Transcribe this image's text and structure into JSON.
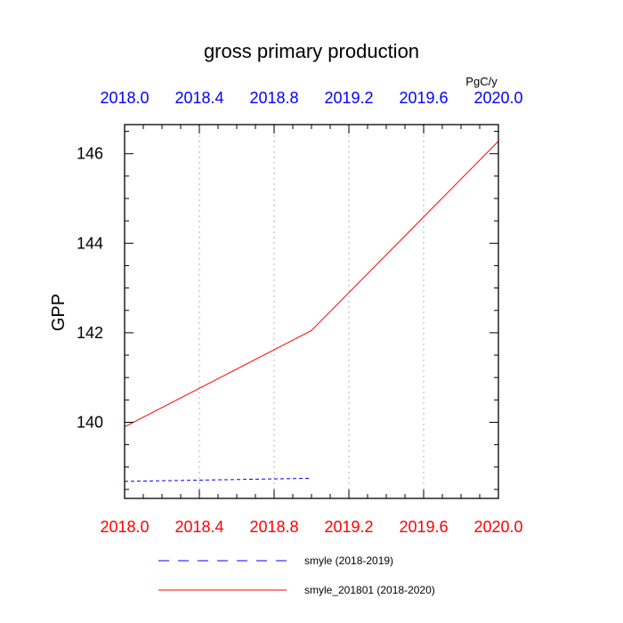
{
  "chart_data": {
    "type": "line",
    "title": "gross primary production",
    "units": "PgC/y",
    "ylabel": "GPP",
    "xlabel": "",
    "xlim": [
      2018.0,
      2020.0
    ],
    "ylim": [
      138.3,
      146.65
    ],
    "x_ticks": [
      2018.0,
      2018.4,
      2018.8,
      2019.2,
      2019.6,
      2020.0
    ],
    "x_tick_labels": [
      "2018.0",
      "2018.4",
      "2018.8",
      "2019.2",
      "2019.6",
      "2020.0"
    ],
    "y_ticks": [
      140,
      142,
      144,
      146
    ],
    "y_tick_labels": [
      "140",
      "142",
      "144",
      "146"
    ],
    "grid": "vertical dotted at x ticks",
    "legend_position": "bottom",
    "series": [
      {
        "name": "smyle (2018-2019)",
        "color": "#0000ff",
        "dash": "dashed",
        "x": [
          2018.0,
          2019.0
        ],
        "y": [
          138.68,
          138.75
        ]
      },
      {
        "name": "smyle_201801 (2018-2020)",
        "color": "#ff0000",
        "dash": "solid",
        "x": [
          2018.0,
          2019.0,
          2020.0
        ],
        "y": [
          139.9,
          142.05,
          146.28
        ]
      }
    ],
    "colors": {
      "top_axis_labels": "#0000ff",
      "bottom_axis_labels": "#ff0000",
      "left_axis_labels": "#000000"
    }
  }
}
